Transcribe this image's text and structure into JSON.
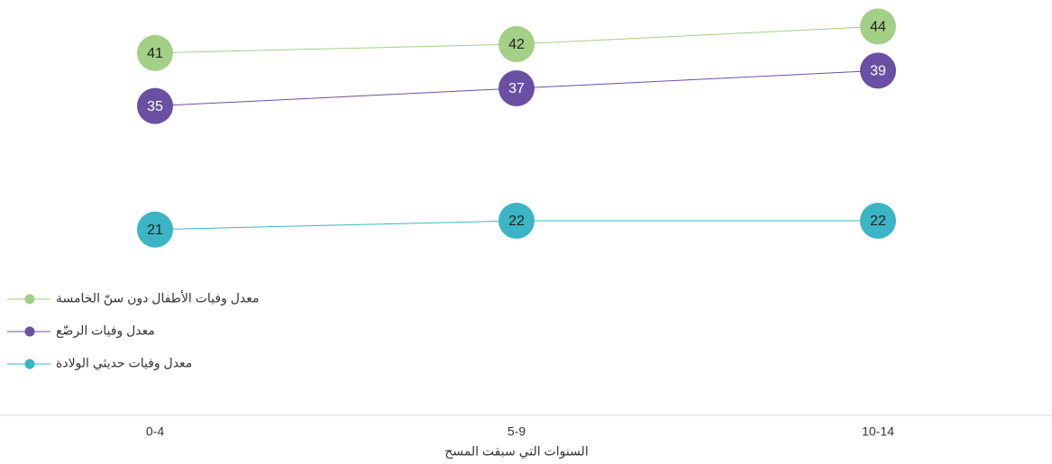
{
  "chart_data": {
    "type": "line",
    "categories": [
      "0-4",
      "5-9",
      "10-14"
    ],
    "x_label": "السنوات التي سبقت المسح",
    "ylim": [
      15,
      47
    ],
    "series": [
      {
        "name": "معدل وفيات الأطفال دون سنّ الخامسة",
        "color": "#a3cf87",
        "values": [
          41,
          42,
          44
        ]
      },
      {
        "name": "معدل وفيات الرضّع",
        "color": "#6b4fa3",
        "values": [
          35,
          37,
          39
        ]
      },
      {
        "name": "معدل وفيات حديثي الولادة",
        "color": "#3bb5c6",
        "values": [
          21,
          22,
          22
        ]
      }
    ],
    "legend": "left"
  }
}
